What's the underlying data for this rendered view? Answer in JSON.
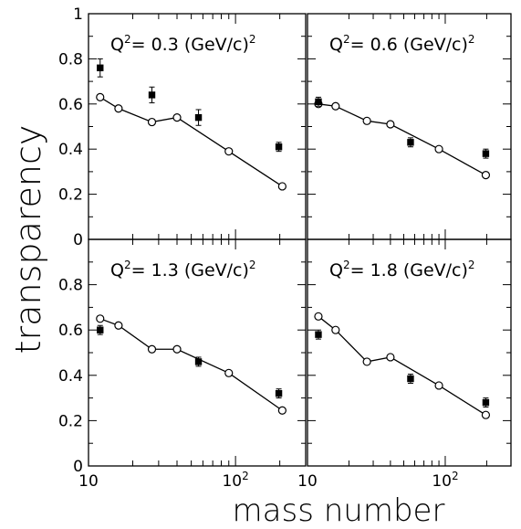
{
  "figure": {
    "ylabel": "transparency",
    "xlabel": "mass number"
  },
  "chart_data": [
    {
      "type": "line",
      "title": "Q² = 0.3 (GeV/c)²",
      "title_parts": {
        "prefix": "Q",
        "sup1": "2",
        "mid": "= 0.3 (GeV/c)",
        "sup2": "2"
      },
      "x_scale": "log",
      "xlim": [
        10,
        300
      ],
      "ylim": [
        0,
        1
      ],
      "x_ticks": [
        "10",
        "10²"
      ],
      "y_ticks": [
        "0",
        "0.2",
        "0.4",
        "0.6",
        "0.8",
        "1"
      ],
      "series": [
        {
          "marker": "open-circle",
          "connected": true,
          "x": [
            12,
            16,
            27,
            40,
            90,
            208
          ],
          "y": [
            0.63,
            0.58,
            0.52,
            0.54,
            0.39,
            0.235
          ]
        },
        {
          "marker": "filled-square",
          "connected": false,
          "x": [
            12,
            27,
            56,
            197
          ],
          "y": [
            0.76,
            0.64,
            0.54,
            0.41
          ],
          "err": [
            0.04,
            0.035,
            0.035,
            0.02
          ]
        }
      ]
    },
    {
      "type": "line",
      "title": "Q² = 0.6 (GeV/c)²",
      "title_parts": {
        "prefix": "Q",
        "sup1": "2",
        "mid": "= 0.6 (GeV/c)",
        "sup2": "2"
      },
      "x_scale": "log",
      "xlim": [
        10,
        300
      ],
      "ylim": [
        0,
        1
      ],
      "x_ticks": [
        "10",
        "10²"
      ],
      "y_ticks": [],
      "series": [
        {
          "marker": "open-circle",
          "connected": true,
          "x": [
            12,
            16,
            27,
            40,
            90,
            197
          ],
          "y": [
            0.6,
            0.59,
            0.525,
            0.51,
            0.4,
            0.285
          ]
        },
        {
          "marker": "filled-square",
          "connected": false,
          "x": [
            12,
            56,
            197
          ],
          "y": [
            0.61,
            0.43,
            0.38
          ],
          "err": [
            0.02,
            0.02,
            0.02
          ]
        }
      ]
    },
    {
      "type": "line",
      "title": "Q² = 1.3 (GeV/c)²",
      "title_parts": {
        "prefix": "Q",
        "sup1": "2",
        "mid": "= 1.3 (GeV/c)",
        "sup2": "2"
      },
      "x_scale": "log",
      "xlim": [
        10,
        300
      ],
      "ylim": [
        0,
        1
      ],
      "x_ticks": [
        "10",
        "10²"
      ],
      "y_ticks": [
        "0",
        "0.2",
        "0.4",
        "0.6",
        "0.8"
      ],
      "series": [
        {
          "marker": "open-circle",
          "connected": true,
          "x": [
            12,
            16,
            27,
            40,
            90,
            208
          ],
          "y": [
            0.65,
            0.62,
            0.515,
            0.515,
            0.41,
            0.245
          ]
        },
        {
          "marker": "filled-square",
          "connected": false,
          "x": [
            12,
            56,
            197
          ],
          "y": [
            0.6,
            0.46,
            0.32
          ],
          "err": [
            0.02,
            0.02,
            0.02
          ]
        }
      ]
    },
    {
      "type": "line",
      "title": "Q² = 1.8 (GeV/c)²",
      "title_parts": {
        "prefix": "Q",
        "sup1": "2",
        "mid": "= 1.8 (GeV/c)",
        "sup2": "2"
      },
      "x_scale": "log",
      "xlim": [
        10,
        300
      ],
      "ylim": [
        0,
        1
      ],
      "x_ticks": [
        "10",
        "10²"
      ],
      "y_ticks": [],
      "series": [
        {
          "marker": "open-circle",
          "connected": true,
          "x": [
            12,
            16,
            27,
            40,
            90,
            197
          ],
          "y": [
            0.66,
            0.6,
            0.46,
            0.48,
            0.355,
            0.225
          ]
        },
        {
          "marker": "filled-square",
          "connected": false,
          "x": [
            12,
            56,
            197
          ],
          "y": [
            0.58,
            0.385,
            0.28
          ],
          "err": [
            0.02,
            0.02,
            0.02
          ]
        }
      ]
    }
  ]
}
